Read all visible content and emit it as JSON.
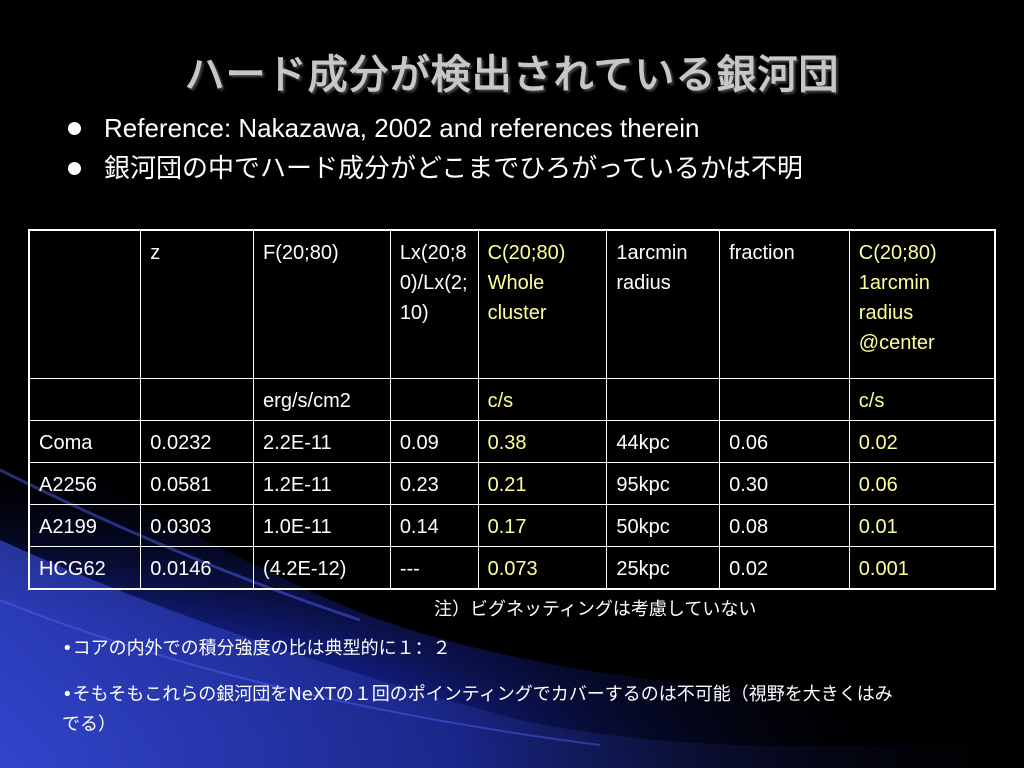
{
  "slide": {
    "title": "ハード成分が検出されている銀河団",
    "bullets": [
      "Reference: Nakazawa, 2002 and references therein",
      "銀河団の中でハード成分がどこまでひろがっているかは不明"
    ]
  },
  "table": {
    "header": {
      "col0": "",
      "col1": "z",
      "col2": "F(20;80)",
      "col3": "Lx(20;80)/Lx(2;10)",
      "col4_lines": [
        "C(20;80)",
        "Whole cluster"
      ],
      "col5": "1arcmin radius",
      "col6": "fraction",
      "col7_lines": [
        "C(20;80)",
        "1arcmin radius @center"
      ]
    },
    "units": [
      "",
      "",
      "erg/s/cm2",
      "",
      "c/s",
      "",
      "",
      "c/s"
    ],
    "rows": [
      [
        "Coma",
        "0.0232",
        "2.2E-11",
        "0.09",
        "0.38",
        "44kpc",
        "0.06",
        "0.02"
      ],
      [
        "A2256",
        "0.0581",
        "1.2E-11",
        "0.23",
        "0.21",
        "95kpc",
        "0.30",
        "0.06"
      ],
      [
        "A2199",
        "0.0303",
        "1.0E-11",
        "0.14",
        "0.17",
        "50kpc",
        "0.08",
        "0.01"
      ],
      [
        "HCG62",
        "0.0146",
        "(4.2E-12)",
        "---",
        "0.073",
        "25kpc",
        "0.02",
        "0.001"
      ]
    ],
    "highlight_color": "#ffff99"
  },
  "note": "注）ビグネッティングは考慮していない",
  "footer": [
    "•コアの内外での積分強度の比は典型的に１：２",
    "•そもそもこれらの銀河団をNeXTの１回のポインティングでカバーするのは不可能（視野を大きくはみでる）"
  ]
}
